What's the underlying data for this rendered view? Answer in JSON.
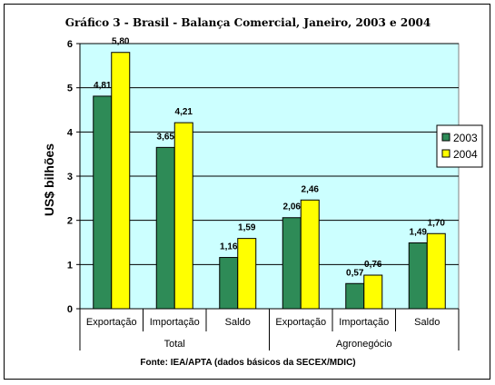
{
  "chart_data": {
    "type": "bar",
    "title": "Gráfico 3 - Brasil - Balança Comercial, Janeiro, 2003 e 2004",
    "ylabel": "US$ bilhões",
    "ylim": [
      0,
      6
    ],
    "yticks": [
      "0",
      "1",
      "2",
      "3",
      "4",
      "5",
      "6"
    ],
    "grid": true,
    "legend_position": "right",
    "categories": [
      "Exportação",
      "Importação",
      "Saldo",
      "Exportação",
      "Importação",
      "Saldo"
    ],
    "groups": [
      {
        "label": "Total",
        "span": 3
      },
      {
        "label": "Agronegócio",
        "span": 3
      }
    ],
    "series": [
      {
        "name": "2003",
        "color": "#2E8B57",
        "values": [
          4.81,
          3.65,
          1.16,
          2.06,
          0.57,
          1.49
        ],
        "labels": [
          "4,81",
          "3,65",
          "1,16",
          "2,06",
          "0,57",
          "1,49"
        ]
      },
      {
        "name": "2004",
        "color": "#FFFF00",
        "values": [
          5.8,
          4.21,
          1.59,
          2.46,
          0.76,
          1.7
        ],
        "labels": [
          "5,80",
          "4,21",
          "1,59",
          "2,46",
          "0,76",
          "1,70"
        ]
      }
    ],
    "plot_background": "#CCFFFF",
    "source": "Fonte: IEA/APTA (dados básicos da SECEX/MDIC)"
  }
}
